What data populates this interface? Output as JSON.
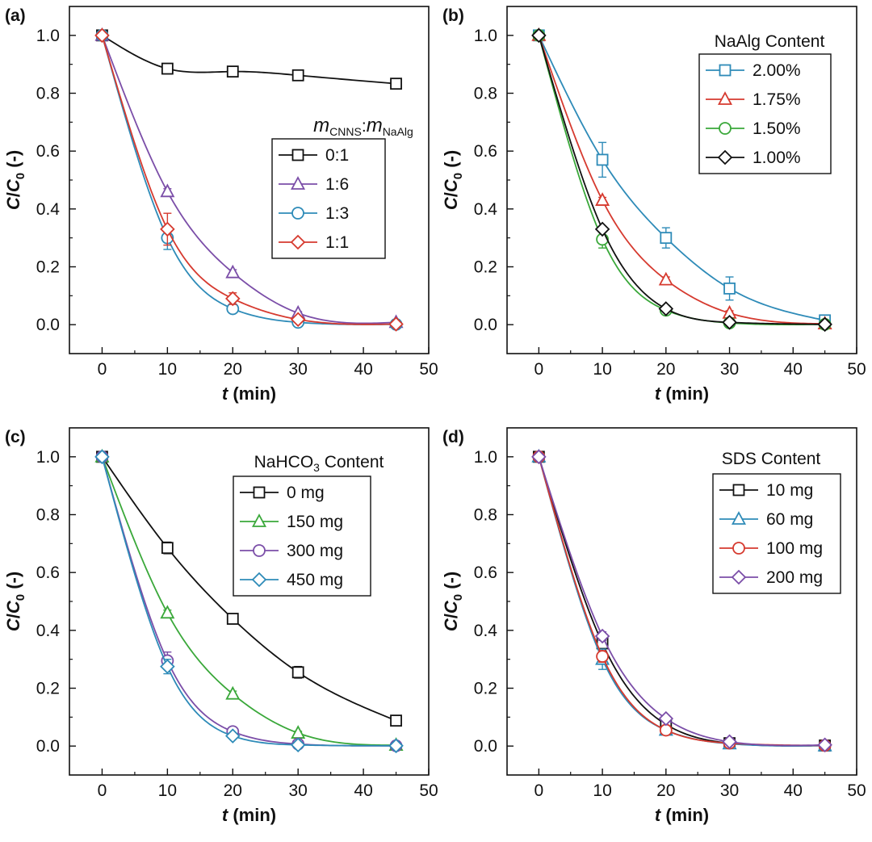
{
  "figure": {
    "panel_labels": [
      "(a)",
      "(b)",
      "(c)",
      "(d)"
    ]
  },
  "chart_data": [
    {
      "type": "line",
      "panel": "(a)",
      "xlabel": {
        "italic": "t",
        "rest": " (min)"
      },
      "ylabel": {
        "c": "C",
        "sep": "/",
        "c0": "C",
        "sub": "0",
        "rest": " (-)"
      },
      "xlim": [
        -5,
        50
      ],
      "ylim": [
        -0.1,
        1.1
      ],
      "xticks": [
        "0",
        "10",
        "20",
        "30",
        "40",
        "50"
      ],
      "yticks": [
        "0.0",
        "0.2",
        "0.4",
        "0.6",
        "0.8",
        "1.0"
      ],
      "legend": {
        "position": "middle-right",
        "title": {
          "m1": "m",
          "sub1": "CNNS",
          "sep": ":",
          "m2": "m",
          "sub2": "NaAlg"
        },
        "entries": [
          "0:1",
          "1:6",
          "1:3",
          "1:1"
        ]
      },
      "x": [
        0,
        10,
        20,
        30,
        45
      ],
      "series": [
        {
          "name": "0:1",
          "marker": "square",
          "color": "#111111",
          "values": [
            1.0,
            0.885,
            0.875,
            0.862,
            0.833
          ],
          "errors": [
            0,
            0.012,
            0.008,
            0.01,
            0.008
          ]
        },
        {
          "name": "1:6",
          "marker": "triangle",
          "color": "#7b4ea8",
          "values": [
            1.0,
            0.46,
            0.18,
            0.04,
            0.008
          ],
          "errors": [
            0,
            0.01,
            0.01,
            0.005,
            0.003
          ]
        },
        {
          "name": "1:3",
          "marker": "circle",
          "color": "#2e8bb8",
          "values": [
            1.0,
            0.3,
            0.055,
            0.008,
            0.001
          ],
          "errors": [
            0,
            0.04,
            0.01,
            0.004,
            0.002
          ]
        },
        {
          "name": "1:1",
          "marker": "diamond",
          "color": "#d63a2f",
          "values": [
            1.0,
            0.33,
            0.09,
            0.018,
            0.002
          ],
          "errors": [
            0,
            0.055,
            0.02,
            0.005,
            0.002
          ]
        }
      ]
    },
    {
      "type": "line",
      "panel": "(b)",
      "xlabel": {
        "italic": "t",
        "rest": " (min)"
      },
      "ylabel": {
        "c": "C",
        "sep": "/",
        "c0": "C",
        "sub": "0",
        "rest": " (-)"
      },
      "xlim": [
        -5,
        50
      ],
      "ylim": [
        -0.1,
        1.1
      ],
      "xticks": [
        "0",
        "10",
        "20",
        "30",
        "40",
        "50"
      ],
      "yticks": [
        "0.0",
        "0.2",
        "0.4",
        "0.6",
        "0.8",
        "1.0"
      ],
      "legend": {
        "position": "top-right",
        "title": "NaAlg Content",
        "entries": [
          "2.00%",
          "1.75%",
          "1.50%",
          "1.00%"
        ]
      },
      "x": [
        0,
        10,
        20,
        30,
        45
      ],
      "series": [
        {
          "name": "2.00%",
          "marker": "square",
          "color": "#2e8bb8",
          "values": [
            1.0,
            0.57,
            0.3,
            0.125,
            0.015
          ],
          "errors": [
            0,
            0.06,
            0.035,
            0.04,
            0.01
          ]
        },
        {
          "name": "1.75%",
          "marker": "triangle",
          "color": "#d63a2f",
          "values": [
            1.0,
            0.43,
            0.155,
            0.04,
            0.003
          ],
          "errors": [
            0,
            0.01,
            0.01,
            0.008,
            0.002
          ]
        },
        {
          "name": "1.50%",
          "marker": "circle",
          "color": "#3aa83a",
          "values": [
            1.0,
            0.295,
            0.05,
            0.006,
            0.001
          ],
          "errors": [
            0,
            0.03,
            0.01,
            0.003,
            0.001
          ]
        },
        {
          "name": "1.00%",
          "marker": "diamond",
          "color": "#111111",
          "values": [
            1.0,
            0.33,
            0.055,
            0.008,
            0.001
          ],
          "errors": [
            0,
            0.01,
            0.008,
            0.003,
            0.001
          ]
        }
      ]
    },
    {
      "type": "line",
      "panel": "(c)",
      "xlabel": {
        "italic": "t",
        "rest": " (min)"
      },
      "ylabel": {
        "c": "C",
        "sep": "/",
        "c0": "C",
        "sub": "0",
        "rest": " (-)"
      },
      "xlim": [
        -5,
        50
      ],
      "ylim": [
        -0.1,
        1.1
      ],
      "xticks": [
        "0",
        "10",
        "20",
        "30",
        "40",
        "50"
      ],
      "yticks": [
        "0.0",
        "0.2",
        "0.4",
        "0.6",
        "0.8",
        "1.0"
      ],
      "legend": {
        "position": "top-right",
        "title": {
          "pre": "NaHCO",
          "sub": "3",
          "post": " Content"
        },
        "entries": [
          "0 mg",
          "150 mg",
          "300 mg",
          "450 mg"
        ]
      },
      "x": [
        0,
        10,
        20,
        30,
        45
      ],
      "series": [
        {
          "name": "0 mg",
          "marker": "square",
          "color": "#111111",
          "values": [
            1.0,
            0.685,
            0.44,
            0.255,
            0.088
          ],
          "errors": [
            0,
            0.02,
            0.015,
            0.02,
            0.012
          ]
        },
        {
          "name": "150 mg",
          "marker": "triangle",
          "color": "#3aa83a",
          "values": [
            1.0,
            0.46,
            0.18,
            0.045,
            0.003
          ],
          "errors": [
            0,
            0.01,
            0.01,
            0.006,
            0.002
          ]
        },
        {
          "name": "300 mg",
          "marker": "circle",
          "color": "#7b4ea8",
          "values": [
            1.0,
            0.295,
            0.05,
            0.007,
            0.001
          ],
          "errors": [
            0,
            0.03,
            0.008,
            0.003,
            0.001
          ]
        },
        {
          "name": "450 mg",
          "marker": "diamond",
          "color": "#2e8bb8",
          "values": [
            1.0,
            0.275,
            0.035,
            0.004,
            0.001
          ],
          "errors": [
            0,
            0.025,
            0.008,
            0.002,
            0.001
          ]
        }
      ]
    },
    {
      "type": "line",
      "panel": "(d)",
      "xlabel": {
        "italic": "t",
        "rest": " (min)"
      },
      "ylabel": {
        "c": "C",
        "sep": "/",
        "c0": "C",
        "sub": "0",
        "rest": " (-)"
      },
      "xlim": [
        -5,
        50
      ],
      "ylim": [
        -0.1,
        1.1
      ],
      "xticks": [
        "0",
        "10",
        "20",
        "30",
        "40",
        "50"
      ],
      "yticks": [
        "0.0",
        "0.2",
        "0.4",
        "0.6",
        "0.8",
        "1.0"
      ],
      "legend": {
        "position": "top-right",
        "title": "SDS Content",
        "entries": [
          "10 mg",
          "60 mg",
          "100 mg",
          "200 mg"
        ]
      },
      "x": [
        0,
        10,
        20,
        30,
        45
      ],
      "series": [
        {
          "name": "10 mg",
          "marker": "square",
          "color": "#111111",
          "values": [
            1.0,
            0.355,
            0.075,
            0.01,
            0.002
          ],
          "errors": [
            0,
            0.015,
            0.01,
            0.004,
            0.002
          ]
        },
        {
          "name": "60 mg",
          "marker": "triangle",
          "color": "#2e8bb8",
          "values": [
            1.0,
            0.3,
            0.055,
            0.008,
            0.001
          ],
          "errors": [
            0,
            0.035,
            0.01,
            0.004,
            0.001
          ]
        },
        {
          "name": "100 mg",
          "marker": "circle",
          "color": "#d63a2f",
          "values": [
            1.0,
            0.31,
            0.055,
            0.01,
            0.002
          ],
          "errors": [
            0,
            0.02,
            0.008,
            0.004,
            0.002
          ]
        },
        {
          "name": "200 mg",
          "marker": "diamond",
          "color": "#7b4ea8",
          "values": [
            1.0,
            0.38,
            0.095,
            0.015,
            0.004
          ],
          "errors": [
            0,
            0.015,
            0.01,
            0.005,
            0.003
          ]
        }
      ]
    }
  ]
}
